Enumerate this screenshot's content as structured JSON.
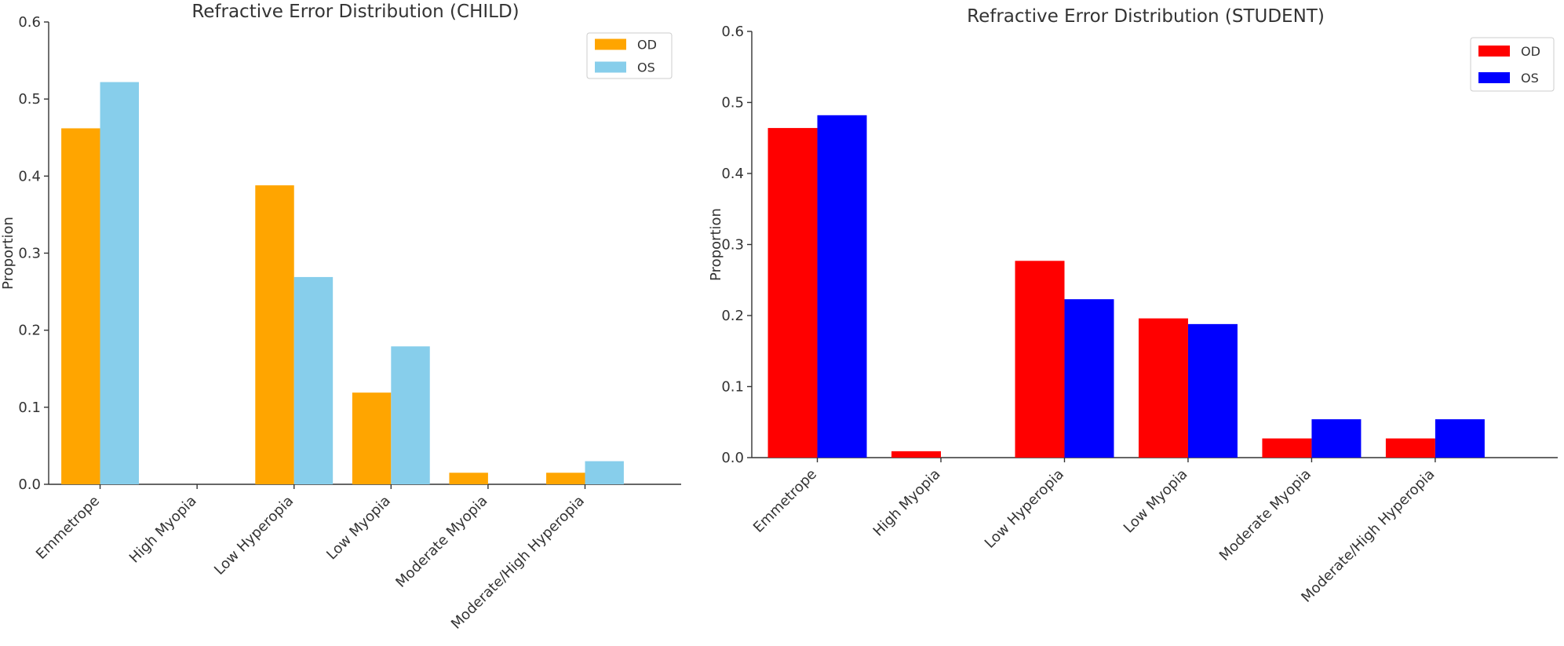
{
  "chart_data": [
    {
      "type": "bar",
      "title": "Refractive Error Distribution (CHILD)",
      "xlabel": "",
      "ylabel": "Proportion",
      "ylim": [
        0,
        0.6
      ],
      "yticks": [
        "0.0",
        "0.1",
        "0.2",
        "0.3",
        "0.4",
        "0.5",
        "0.6"
      ],
      "grid": false,
      "legend_position": "top-right",
      "categories": [
        "Emmetrope",
        "High Myopia",
        "Low Hyperopia",
        "Low Myopia",
        "Moderate Myopia",
        "Moderate/High Hyperopia"
      ],
      "series": [
        {
          "name": "OD",
          "color": "#FFA500",
          "values": [
            0.462,
            0,
            0.388,
            0.119,
            0.015,
            0.015
          ]
        },
        {
          "name": "OS",
          "color": "#87CEEB",
          "values": [
            0.522,
            0,
            0.269,
            0.179,
            0,
            0.03
          ]
        }
      ]
    },
    {
      "type": "bar",
      "title": "Refractive Error Distribution (STUDENT)",
      "xlabel": "",
      "ylabel": "Proportion",
      "ylim": [
        0,
        0.6
      ],
      "yticks": [
        "0.0",
        "0.1",
        "0.2",
        "0.3",
        "0.4",
        "0.5",
        "0.6"
      ],
      "grid": false,
      "legend_position": "top-right",
      "categories": [
        "Emmetrope",
        "High Myopia",
        "Low Hyperopia",
        "Low Myopia",
        "Moderate Myopia",
        "Moderate/High Hyperopia"
      ],
      "series": [
        {
          "name": "OD",
          "color": "#FF0000",
          "values": [
            0.464,
            0.009,
            0.277,
            0.196,
            0.027,
            0.027
          ]
        },
        {
          "name": "OS",
          "color": "#0000FF",
          "values": [
            0.482,
            0,
            0.223,
            0.188,
            0.054,
            0.054
          ]
        }
      ]
    }
  ]
}
